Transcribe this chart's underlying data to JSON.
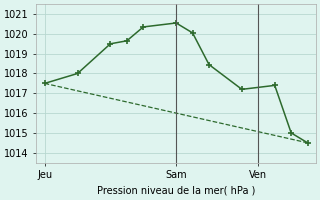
{
  "line1_x": [
    0,
    2,
    4,
    5,
    6,
    8,
    9,
    10,
    12,
    14,
    15,
    16
  ],
  "line1_y": [
    1017.5,
    1018.0,
    1019.5,
    1019.65,
    1020.35,
    1020.55,
    1020.05,
    1018.45,
    1017.2,
    1017.4,
    1015.0,
    1014.5
  ],
  "line2_x": [
    0,
    16
  ],
  "line2_y": [
    1017.5,
    1014.5
  ],
  "ylim": [
    1013.5,
    1021.5
  ],
  "yticks": [
    1014,
    1015,
    1016,
    1017,
    1018,
    1019,
    1020,
    1021
  ],
  "xlim": [
    -0.5,
    16.5
  ],
  "xtick_positions": [
    0,
    8,
    13
  ],
  "xtick_labels": [
    "Jeu",
    "Sam",
    "Ven"
  ],
  "xlabel": "Pression niveau de la mer( hPa )",
  "line_color": "#2d6a2d",
  "bg_color": "#dff4ef",
  "grid_color": "#b8d8d0",
  "vline_x": 8,
  "vline2_x": 13
}
